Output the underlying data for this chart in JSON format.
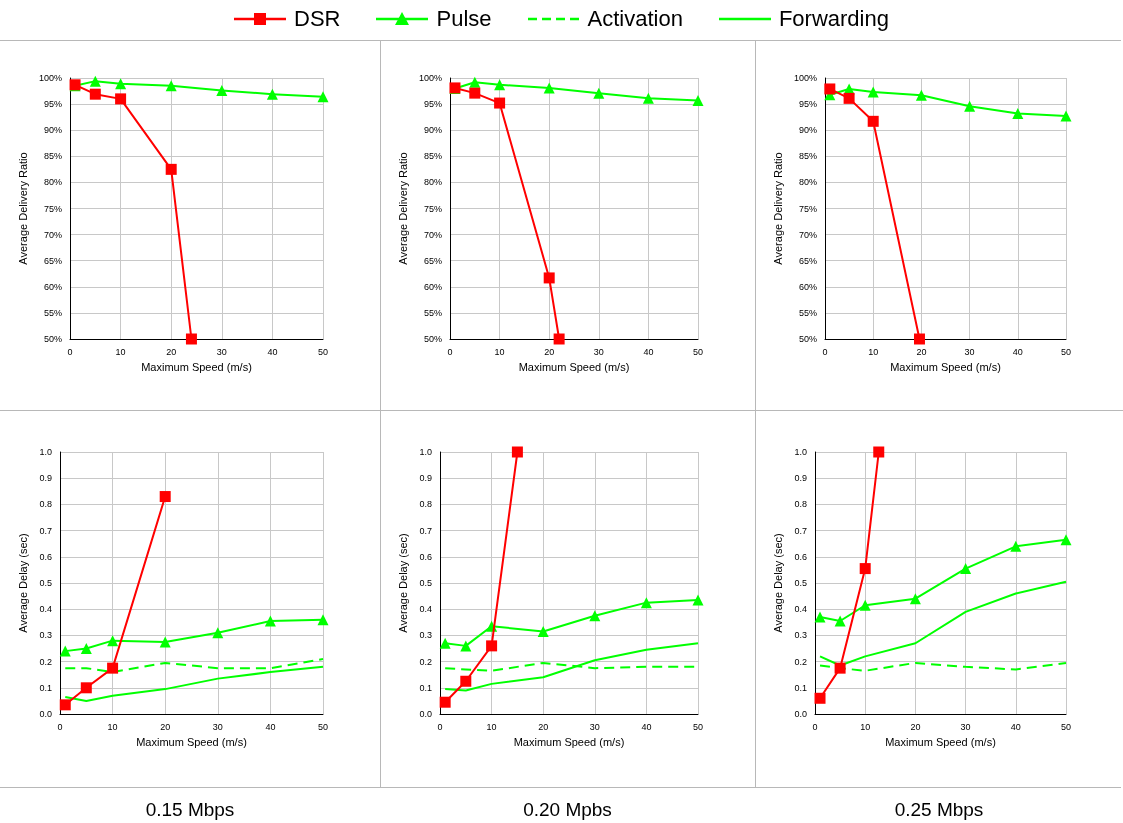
{
  "chart_data": [
    {
      "type": "line",
      "xlabel": "Maximum Speed (m/s)",
      "ylabel": "Average Delivery Ratio",
      "xlim": [
        0,
        50
      ],
      "xticks": [
        0,
        10,
        20,
        30,
        40,
        50
      ],
      "ylim": [
        50,
        100
      ],
      "yticks": [
        {
          "value": 50,
          "label": "50%"
        },
        {
          "value": 55,
          "label": "55%"
        },
        {
          "value": 60,
          "label": "60%"
        },
        {
          "value": 65,
          "label": "65%"
        },
        {
          "value": 70,
          "label": "70%"
        },
        {
          "value": 75,
          "label": "75%"
        },
        {
          "value": 80,
          "label": "80%"
        },
        {
          "value": 85,
          "label": "85%"
        },
        {
          "value": 90,
          "label": "90%"
        },
        {
          "value": 95,
          "label": "95%"
        },
        {
          "value": 100,
          "label": "100%"
        }
      ],
      "grid": true,
      "legend": "top",
      "series": [
        {
          "name": "DSR",
          "color": "#ff0000",
          "marker": "square",
          "line_style": "solid",
          "x": [
            1,
            5,
            10,
            20,
            24
          ],
          "values": [
            98.7,
            96.9,
            96.0,
            82.5,
            50
          ]
        },
        {
          "name": "Pulse",
          "color": "#00ff00",
          "marker": "triangle",
          "line_style": "solid",
          "x": [
            1,
            5,
            10,
            20,
            30,
            40,
            50
          ],
          "values": [
            98.5,
            99.4,
            98.9,
            98.5,
            97.6,
            96.9,
            96.4
          ]
        },
        {
          "name": "Activation",
          "color": "#00ff00",
          "marker": "none",
          "line_style": "dashed"
        },
        {
          "name": "Forwarding",
          "color": "#00ff00",
          "marker": "none",
          "line_style": "solid"
        }
      ]
    },
    {
      "type": "line",
      "xlabel": "Maximum Speed (m/s)",
      "ylabel": "Average Delivery Ratio",
      "xlim": [
        0,
        50
      ],
      "xticks": [
        0,
        10,
        20,
        30,
        40,
        50
      ],
      "ylim": [
        50,
        100
      ],
      "yticks": [
        {
          "value": 50,
          "label": "50%"
        },
        {
          "value": 55,
          "label": "55%"
        },
        {
          "value": 60,
          "label": "60%"
        },
        {
          "value": 65,
          "label": "65%"
        },
        {
          "value": 70,
          "label": "70%"
        },
        {
          "value": 75,
          "label": "75%"
        },
        {
          "value": 80,
          "label": "80%"
        },
        {
          "value": 85,
          "label": "85%"
        },
        {
          "value": 90,
          "label": "90%"
        },
        {
          "value": 95,
          "label": "95%"
        },
        {
          "value": 100,
          "label": "100%"
        }
      ],
      "grid": true,
      "legend": false,
      "series": [
        {
          "color": "#ff0000",
          "marker": "square",
          "line_style": "solid",
          "x": [
            1,
            5,
            10,
            20,
            22
          ],
          "values": [
            98.1,
            97.1,
            95.2,
            61.7,
            50
          ]
        },
        {
          "color": "#00ff00",
          "marker": "triangle",
          "line_style": "solid",
          "x": [
            1,
            5,
            10,
            20,
            30,
            40,
            50
          ],
          "values": [
            98.0,
            99.2,
            98.7,
            98.1,
            97.1,
            96.1,
            95.7
          ]
        }
      ]
    },
    {
      "type": "line",
      "xlabel": "Maximum Speed (m/s)",
      "ylabel": "Average Delivery Ratio",
      "xlim": [
        0,
        50
      ],
      "xticks": [
        0,
        10,
        20,
        30,
        40,
        50
      ],
      "ylim": [
        50,
        100
      ],
      "yticks": [
        {
          "value": 50,
          "label": "50%"
        },
        {
          "value": 55,
          "label": "55%"
        },
        {
          "value": 60,
          "label": "60%"
        },
        {
          "value": 65,
          "label": "65%"
        },
        {
          "value": 70,
          "label": "70%"
        },
        {
          "value": 75,
          "label": "75%"
        },
        {
          "value": 80,
          "label": "80%"
        },
        {
          "value": 85,
          "label": "85%"
        },
        {
          "value": 90,
          "label": "90%"
        },
        {
          "value": 95,
          "label": "95%"
        },
        {
          "value": 100,
          "label": "100%"
        }
      ],
      "grid": true,
      "legend": false,
      "series": [
        {
          "color": "#ff0000",
          "marker": "square",
          "line_style": "solid",
          "x": [
            1,
            5,
            10,
            19.6
          ],
          "values": [
            97.9,
            96.1,
            91.7,
            50
          ]
        },
        {
          "color": "#00ff00",
          "marker": "triangle",
          "line_style": "solid",
          "x": [
            1,
            5,
            10,
            20,
            30,
            40,
            50
          ],
          "values": [
            96.8,
            97.9,
            97.3,
            96.7,
            94.6,
            93.2,
            92.7
          ]
        }
      ]
    },
    {
      "type": "line",
      "xlabel": "Maximum Speed (m/s)",
      "ylabel": "Average Delay (sec)",
      "xlim": [
        0,
        50
      ],
      "xticks": [
        0,
        10,
        20,
        30,
        40,
        50
      ],
      "ylim": [
        0,
        1
      ],
      "yticks": [
        {
          "value": 0,
          "label": "0.0"
        },
        {
          "value": 0.1,
          "label": "0.1"
        },
        {
          "value": 0.2,
          "label": "0.2"
        },
        {
          "value": 0.3,
          "label": "0.3"
        },
        {
          "value": 0.4,
          "label": "0.4"
        },
        {
          "value": 0.5,
          "label": "0.5"
        },
        {
          "value": 0.6,
          "label": "0.6"
        },
        {
          "value": 0.7,
          "label": "0.7"
        },
        {
          "value": 0.8,
          "label": "0.8"
        },
        {
          "value": 0.9,
          "label": "0.9"
        },
        {
          "value": 1,
          "label": "1.0"
        }
      ],
      "grid": true,
      "legend": false,
      "annotations": [
        "0.15 Mbps"
      ],
      "series": [
        {
          "color": "#ff0000",
          "marker": "square",
          "line_style": "solid",
          "x": [
            1,
            5,
            10,
            20
          ],
          "values": [
            0.035,
            0.1,
            0.175,
            0.83
          ]
        },
        {
          "color": "#00ff00",
          "marker": "triangle",
          "line_style": "solid",
          "x": [
            1,
            5,
            10,
            20,
            30,
            40,
            50
          ],
          "values": [
            0.24,
            0.25,
            0.28,
            0.275,
            0.31,
            0.355,
            0.36
          ]
        },
        {
          "color": "#00ff00",
          "marker": "none",
          "line_style": "dashed",
          "x": [
            1,
            5,
            10,
            20,
            30,
            40,
            50
          ],
          "values": [
            0.175,
            0.175,
            0.16,
            0.195,
            0.175,
            0.175,
            0.21
          ]
        },
        {
          "color": "#00ff00",
          "marker": "none",
          "line_style": "solid",
          "x": [
            1,
            5,
            10,
            20,
            30,
            40,
            50
          ],
          "values": [
            0.065,
            0.05,
            0.07,
            0.095,
            0.135,
            0.16,
            0.18
          ]
        }
      ]
    },
    {
      "type": "line",
      "xlabel": "Maximum Speed (m/s)",
      "ylabel": "Average Delay (sec)",
      "xlim": [
        0,
        50
      ],
      "xticks": [
        0,
        10,
        20,
        30,
        40,
        50
      ],
      "ylim": [
        0,
        1
      ],
      "yticks": [
        {
          "value": 0,
          "label": "0.0"
        },
        {
          "value": 0.1,
          "label": "0.1"
        },
        {
          "value": 0.2,
          "label": "0.2"
        },
        {
          "value": 0.3,
          "label": "0.3"
        },
        {
          "value": 0.4,
          "label": "0.4"
        },
        {
          "value": 0.5,
          "label": "0.5"
        },
        {
          "value": 0.6,
          "label": "0.6"
        },
        {
          "value": 0.7,
          "label": "0.7"
        },
        {
          "value": 0.8,
          "label": "0.8"
        },
        {
          "value": 0.9,
          "label": "0.9"
        },
        {
          "value": 1,
          "label": "1.0"
        }
      ],
      "grid": true,
      "legend": false,
      "annotations": [
        "0.20 Mpbs"
      ],
      "series": [
        {
          "color": "#ff0000",
          "marker": "square",
          "line_style": "solid",
          "x": [
            1,
            5,
            10,
            15
          ],
          "values": [
            0.045,
            0.125,
            0.26,
            1
          ]
        },
        {
          "color": "#00ff00",
          "marker": "triangle",
          "line_style": "solid",
          "x": [
            1,
            5,
            10,
            20,
            30,
            40,
            50
          ],
          "values": [
            0.27,
            0.26,
            0.335,
            0.315,
            0.375,
            0.425,
            0.435
          ]
        },
        {
          "color": "#00ff00",
          "marker": "none",
          "line_style": "dashed",
          "x": [
            1,
            5,
            10,
            20,
            30,
            40,
            50
          ],
          "values": [
            0.175,
            0.17,
            0.165,
            0.195,
            0.175,
            0.18,
            0.18
          ]
        },
        {
          "color": "#00ff00",
          "marker": "none",
          "line_style": "solid",
          "x": [
            1,
            5,
            10,
            20,
            30,
            40,
            50
          ],
          "values": [
            0.095,
            0.09,
            0.115,
            0.14,
            0.205,
            0.245,
            0.27
          ]
        }
      ]
    },
    {
      "type": "line",
      "xlabel": "Maximum Speed (m/s)",
      "ylabel": "Average Delay (sec)",
      "xlim": [
        0,
        50
      ],
      "xticks": [
        0,
        10,
        20,
        30,
        40,
        50
      ],
      "ylim": [
        0,
        1
      ],
      "yticks": [
        {
          "value": 0,
          "label": "0.0"
        },
        {
          "value": 0.1,
          "label": "0.1"
        },
        {
          "value": 0.2,
          "label": "0.2"
        },
        {
          "value": 0.3,
          "label": "0.3"
        },
        {
          "value": 0.4,
          "label": "0.4"
        },
        {
          "value": 0.5,
          "label": "0.5"
        },
        {
          "value": 0.6,
          "label": "0.6"
        },
        {
          "value": 0.7,
          "label": "0.7"
        },
        {
          "value": 0.8,
          "label": "0.8"
        },
        {
          "value": 0.9,
          "label": "0.9"
        },
        {
          "value": 1,
          "label": "1.0"
        }
      ],
      "grid": true,
      "legend": false,
      "annotations": [
        "0.25 Mbps"
      ],
      "series": [
        {
          "color": "#ff0000",
          "marker": "square",
          "line_style": "solid",
          "x": [
            1,
            5,
            10,
            12.7
          ],
          "values": [
            0.06,
            0.175,
            0.555,
            1
          ]
        },
        {
          "color": "#00ff00",
          "marker": "triangle",
          "line_style": "solid",
          "x": [
            1,
            5,
            10,
            20,
            30,
            40,
            50
          ],
          "values": [
            0.37,
            0.355,
            0.415,
            0.44,
            0.555,
            0.64,
            0.665
          ]
        },
        {
          "color": "#00ff00",
          "marker": "none",
          "line_style": "dashed",
          "x": [
            1,
            5,
            10,
            20,
            30,
            40,
            50
          ],
          "values": [
            0.185,
            0.175,
            0.165,
            0.195,
            0.18,
            0.17,
            0.195
          ]
        },
        {
          "color": "#00ff00",
          "marker": "none",
          "line_style": "solid",
          "x": [
            1,
            5,
            10,
            20,
            30,
            40,
            50
          ],
          "values": [
            0.22,
            0.185,
            0.22,
            0.27,
            0.39,
            0.46,
            0.505
          ]
        }
      ]
    }
  ]
}
